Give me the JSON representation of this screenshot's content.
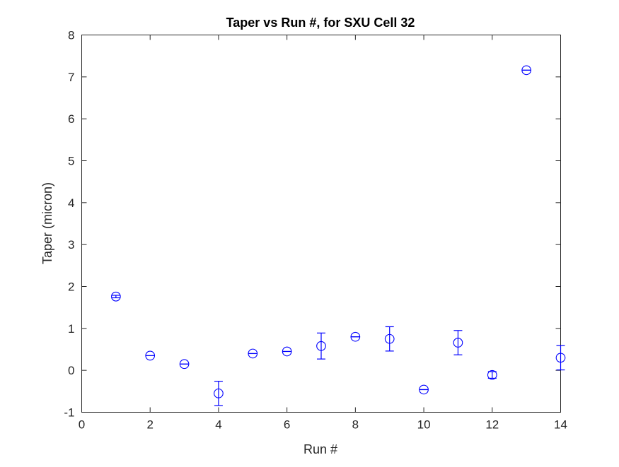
{
  "chart_data": {
    "type": "scatter",
    "title": "Taper vs Run #, for SXU Cell 32",
    "xlabel": "Run #",
    "ylabel": "Taper (micron)",
    "xlim": [
      0,
      14
    ],
    "ylim": [
      -1,
      8
    ],
    "xticks": [
      "0",
      "2",
      "4",
      "6",
      "8",
      "10",
      "12",
      "14"
    ],
    "yticks": [
      "-1",
      "0",
      "1",
      "2",
      "3",
      "4",
      "5",
      "6",
      "7",
      "8"
    ],
    "grid": false,
    "marker": "circle",
    "series_color": "#0000ff",
    "x": [
      1,
      2,
      3,
      4,
      5,
      6,
      7,
      8,
      9,
      10,
      11,
      12,
      13,
      14
    ],
    "y": [
      1.76,
      0.35,
      0.15,
      -0.55,
      0.4,
      0.45,
      0.58,
      0.8,
      0.75,
      -0.46,
      0.66,
      -0.11,
      7.16,
      0.3
    ],
    "error": [
      0.03,
      0.0,
      0.0,
      0.29,
      0.0,
      0.0,
      0.31,
      0.0,
      0.29,
      0.0,
      0.29,
      0.08,
      0.0,
      0.29
    ]
  }
}
